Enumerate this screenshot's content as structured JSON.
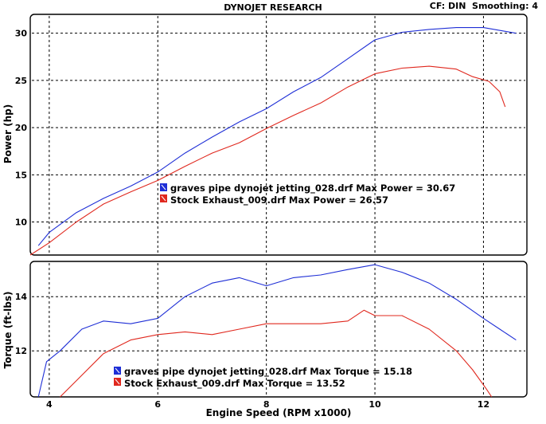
{
  "header": {
    "title": "DYNOJET RESEARCH",
    "settings": "CF: DIN  Smoothing: 4"
  },
  "colors": {
    "run1": "#1f2fd6",
    "run2": "#e0281e",
    "grid": "#000000",
    "frame": "#000000"
  },
  "chart_data": [
    {
      "type": "line",
      "title": "Power",
      "xlabel": "Engine Speed (RPM x1000)",
      "ylabel": "Power (hp)",
      "xlim": [
        3.65,
        12.8
      ],
      "ylim": [
        6.5,
        32
      ],
      "yticks": [
        10,
        15,
        20,
        25,
        30
      ],
      "xgrid": [
        4,
        6,
        8,
        10,
        12
      ],
      "legend": [
        "graves pipe dynojet jetting_028.drf Max Power = 30.67",
        "Stock Exhaust_009.drf Max Power = 26.57"
      ],
      "series": [
        {
          "name": "graves pipe dynojet jetting_028.drf",
          "x": [
            3.8,
            4.0,
            4.5,
            5.0,
            5.5,
            6.0,
            6.5,
            7.0,
            7.5,
            8.0,
            8.5,
            9.0,
            9.5,
            10.0,
            10.5,
            11.0,
            11.5,
            12.0,
            12.4,
            12.6
          ],
          "y": [
            7.5,
            8.9,
            11.0,
            12.5,
            13.8,
            15.3,
            17.3,
            19.0,
            20.6,
            22.0,
            23.8,
            25.3,
            27.3,
            29.3,
            30.1,
            30.4,
            30.6,
            30.6,
            30.2,
            30.0
          ]
        },
        {
          "name": "Stock Exhaust_009.drf",
          "x": [
            3.65,
            4.0,
            4.5,
            5.0,
            5.5,
            6.0,
            6.5,
            7.0,
            7.5,
            8.0,
            8.5,
            9.0,
            9.5,
            10.0,
            10.5,
            11.0,
            11.5,
            11.8,
            12.1,
            12.3,
            12.4
          ],
          "y": [
            6.5,
            7.8,
            10.0,
            11.9,
            13.2,
            14.4,
            15.9,
            17.3,
            18.4,
            19.9,
            21.3,
            22.6,
            24.3,
            25.7,
            26.3,
            26.5,
            26.2,
            25.4,
            24.9,
            23.8,
            22.2
          ]
        }
      ]
    },
    {
      "type": "line",
      "title": "Torque",
      "xlabel": "Engine Speed (RPM x1000)",
      "ylabel": "Torque (ft-lbs)",
      "xlim": [
        3.65,
        12.8
      ],
      "ylim": [
        10.3,
        15.3
      ],
      "yticks": [
        12,
        14
      ],
      "xticks": [
        4,
        6,
        8,
        10,
        12
      ],
      "xgrid": [
        4,
        6,
        8,
        10,
        12
      ],
      "legend": [
        "graves pipe dynojet jetting_028.drf Max Torque = 15.18",
        "Stock Exhaust_009.drf Max Torque = 13.52"
      ],
      "series": [
        {
          "name": "graves pipe dynojet jetting_028.drf",
          "x": [
            3.8,
            3.95,
            4.2,
            4.6,
            5.0,
            5.5,
            6.0,
            6.5,
            7.0,
            7.5,
            8.0,
            8.5,
            9.0,
            9.5,
            10.0,
            10.5,
            11.0,
            11.5,
            12.0,
            12.3,
            12.6
          ],
          "y": [
            10.3,
            11.6,
            12.0,
            12.8,
            13.1,
            13.0,
            13.2,
            14.0,
            14.5,
            14.7,
            14.4,
            14.7,
            14.8,
            15.0,
            15.18,
            14.9,
            14.5,
            13.9,
            13.2,
            12.8,
            12.4
          ]
        },
        {
          "name": "Stock Exhaust_009.drf",
          "x": [
            4.2,
            4.5,
            5.0,
            5.5,
            6.0,
            6.5,
            7.0,
            7.5,
            8.0,
            8.5,
            9.0,
            9.5,
            9.8,
            10.0,
            10.5,
            11.0,
            11.5,
            11.8,
            12.05,
            12.15
          ],
          "y": [
            10.3,
            10.9,
            11.9,
            12.4,
            12.6,
            12.7,
            12.6,
            12.8,
            13.0,
            13.0,
            13.0,
            13.1,
            13.5,
            13.3,
            13.3,
            12.8,
            12.0,
            11.3,
            10.6,
            10.3
          ]
        }
      ]
    }
  ]
}
